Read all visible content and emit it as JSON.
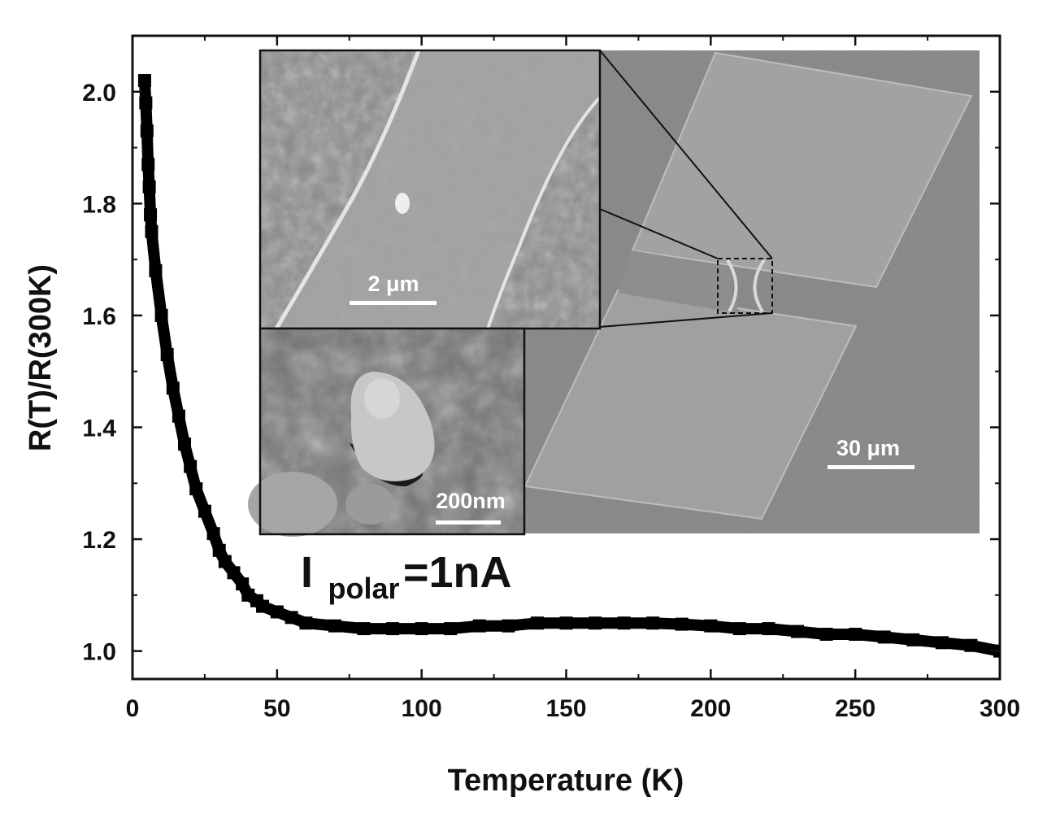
{
  "chart_data": {
    "type": "scatter",
    "xlabel": "Temperature (K)",
    "ylabel": "R(T)/R(300K)",
    "xlim": [
      0,
      300
    ],
    "ylim": [
      0.95,
      2.1
    ],
    "x_ticks": [
      0,
      50,
      100,
      150,
      200,
      250,
      300
    ],
    "y_ticks": [
      1.0,
      1.2,
      1.4,
      1.6,
      1.8,
      2.0
    ],
    "y_tick_labels": [
      "1.0",
      "1.2",
      "1.4",
      "1.6",
      "1.8",
      "2.0"
    ],
    "marker": "square",
    "series": [
      {
        "color": "#000000",
        "x": [
          4.2,
          4.6,
          5.0,
          5.4,
          5.8,
          6.2,
          6.6,
          8,
          10,
          12,
          14,
          16,
          18,
          20,
          22,
          25,
          28,
          30,
          32,
          35,
          38,
          40,
          43,
          45,
          50,
          55,
          60,
          70,
          80,
          90,
          100,
          110,
          120,
          130,
          140,
          150,
          160,
          170,
          180,
          190,
          200,
          210,
          220,
          230,
          240,
          250,
          260,
          270,
          280,
          290,
          300
        ],
        "y": [
          2.02,
          1.98,
          1.93,
          1.87,
          1.83,
          1.78,
          1.75,
          1.68,
          1.6,
          1.53,
          1.47,
          1.42,
          1.37,
          1.33,
          1.29,
          1.25,
          1.21,
          1.18,
          1.16,
          1.14,
          1.12,
          1.1,
          1.09,
          1.08,
          1.07,
          1.06,
          1.05,
          1.045,
          1.04,
          1.04,
          1.04,
          1.04,
          1.045,
          1.045,
          1.05,
          1.05,
          1.05,
          1.05,
          1.05,
          1.048,
          1.045,
          1.04,
          1.04,
          1.035,
          1.03,
          1.03,
          1.025,
          1.02,
          1.015,
          1.01,
          1.0
        ]
      }
    ],
    "annotation": {
      "main": "I",
      "subscript": "polar",
      "suffix": "=1nA"
    },
    "insets": {
      "top_left_scale": "2 μm",
      "bottom_left_scale": "200nm",
      "right_scale": "30 μm"
    }
  }
}
